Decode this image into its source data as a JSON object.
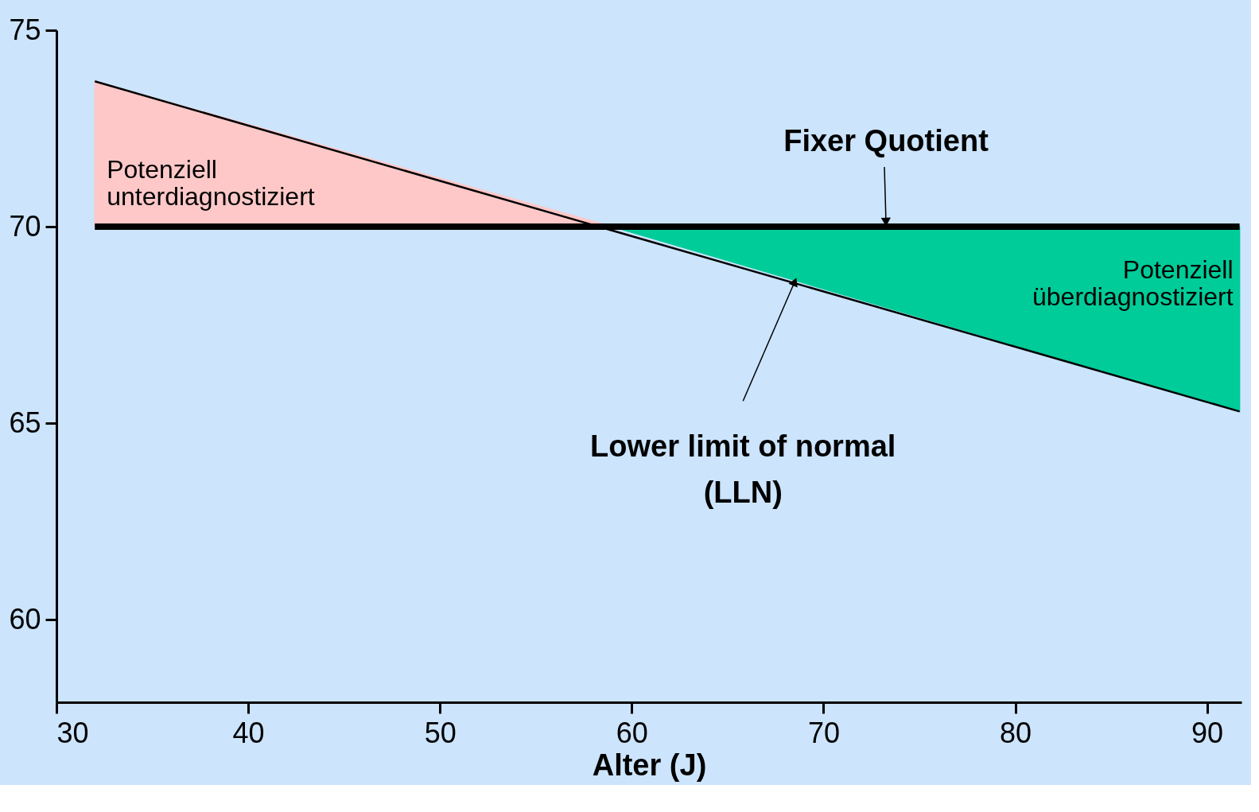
{
  "chart_data": {
    "type": "line",
    "xlabel": "Alter (J)",
    "xlim": [
      30,
      91.8
    ],
    "ylim": [
      57.9,
      75
    ],
    "xticks": [
      30,
      40,
      50,
      60,
      70,
      80,
      90
    ],
    "yticks": [
      60,
      65,
      70,
      75
    ],
    "grid": false,
    "series": [
      {
        "type": "area",
        "name": "Potenziell\nunterdiagnostiziert",
        "color": "#ffc8c8",
        "x": [
          32,
          59
        ],
        "values": [
          73.7,
          70
        ]
      },
      {
        "type": "area",
        "name": "Potenziell\nüberdiagnostiziert",
        "color": "#00cc99",
        "x": [
          59,
          91.7
        ],
        "values": [
          70,
          65.3
        ]
      },
      {
        "color": "#000000",
        "x": [
          32,
          91.7
        ],
        "values": [
          73.7,
          65.3
        ]
      }
    ],
    "ref_lines": [
      {
        "axis": "y",
        "value": 70,
        "label": "Fixer Quotient",
        "color": "#000000"
      }
    ],
    "annotations": [
      {
        "text": "Lower limit of normal\n(LLN)",
        "x": 68.5,
        "y": 68.6
      }
    ]
  }
}
